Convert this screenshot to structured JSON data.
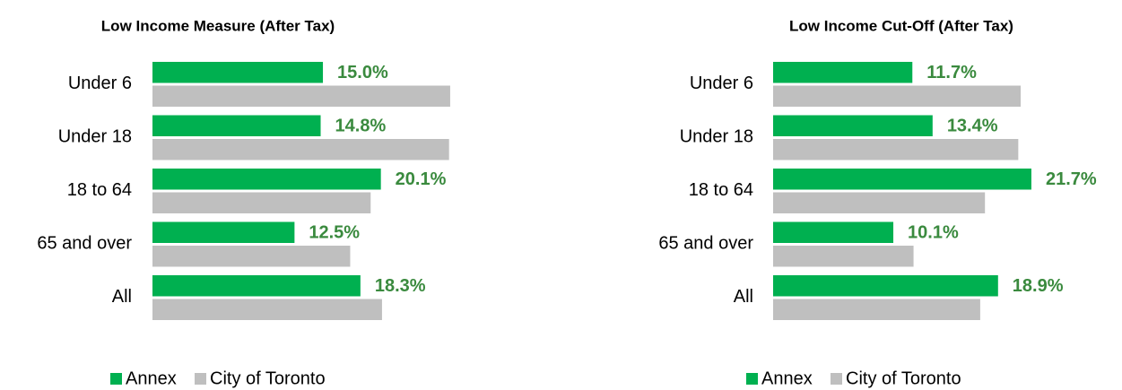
{
  "chart_data": [
    {
      "type": "bar",
      "orientation": "horizontal",
      "title": "Low Income Measure (After Tax)",
      "categories": [
        "Under 6",
        "Under 18",
        "18 to 64",
        "65 and over",
        "All"
      ],
      "series": [
        {
          "name": "Annex",
          "color": "#00b050",
          "values": [
            15.0,
            14.8,
            20.1,
            12.5,
            18.3
          ],
          "value_labels": [
            "15.0%",
            "14.8%",
            "20.1%",
            "12.5%",
            "18.3%"
          ],
          "label_color": "#3a8a3e"
        },
        {
          "name": "City of Toronto",
          "color": "#bfbfbf",
          "values": [
            26.2,
            26.1,
            19.2,
            17.4,
            20.2
          ]
        }
      ]
    },
    {
      "type": "bar",
      "orientation": "horizontal",
      "title": "Low Income Cut-Off (After Tax)",
      "categories": [
        "Under 6",
        "Under 18",
        "18 to 64",
        "65 and over",
        "All"
      ],
      "series": [
        {
          "name": "Annex",
          "color": "#00b050",
          "values": [
            11.7,
            13.4,
            21.7,
            10.1,
            18.9
          ],
          "value_labels": [
            "11.7%",
            "13.4%",
            "21.7%",
            "10.1%",
            "18.9%"
          ],
          "label_color": "#3a8a3e"
        },
        {
          "name": "City of Toronto",
          "color": "#bfbfbf",
          "values": [
            20.8,
            20.6,
            17.8,
            11.8,
            17.4
          ]
        }
      ]
    }
  ]
}
